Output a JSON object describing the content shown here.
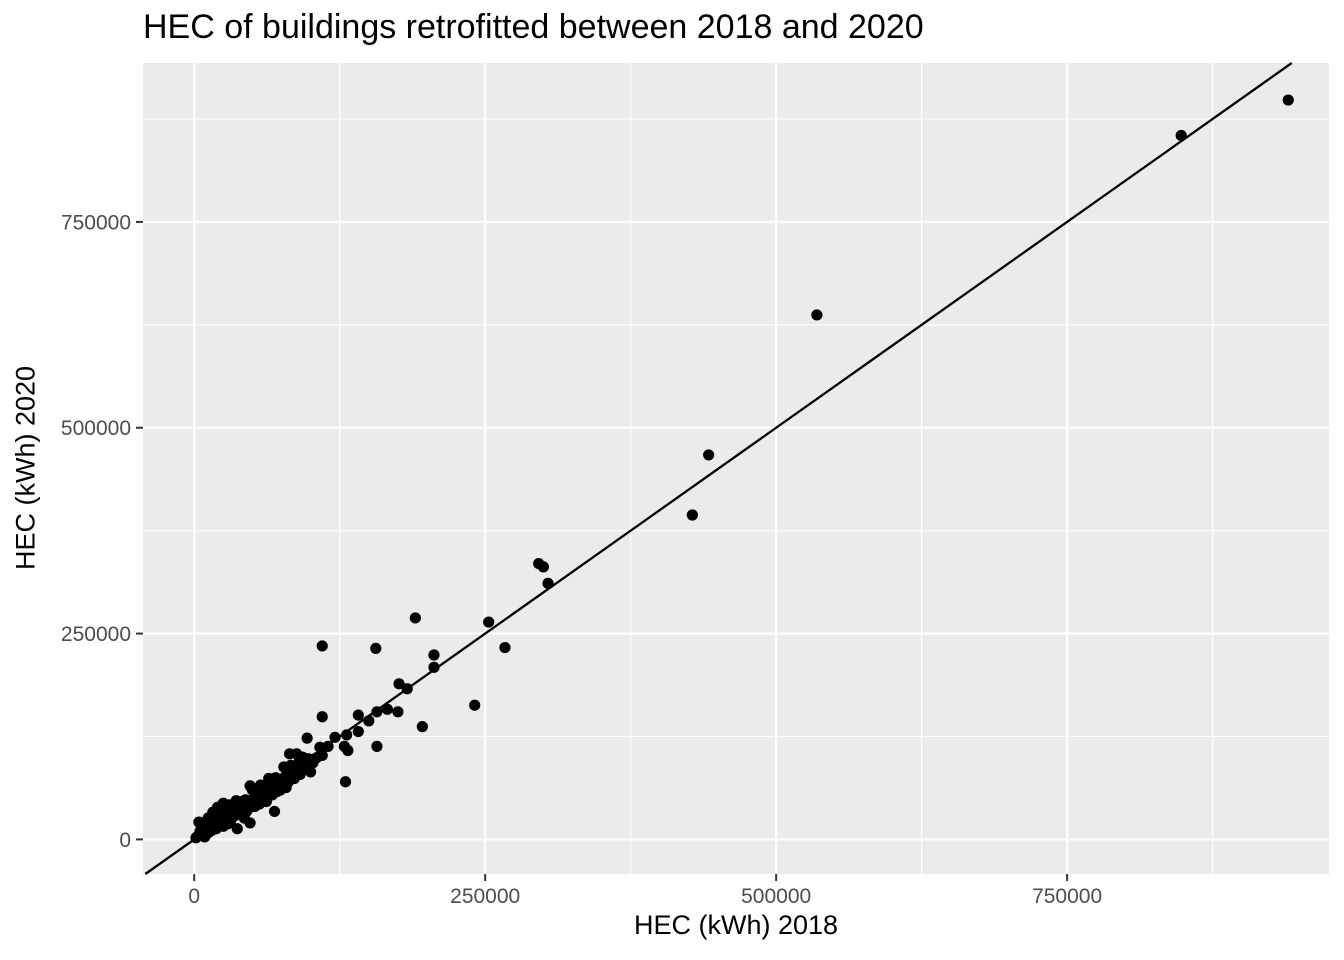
{
  "chart_data": {
    "type": "scatter",
    "title": "HEC of buildings retrofitted between 2018 and 2020",
    "xlabel": "HEC (kWh) 2018",
    "ylabel": "HEC (kWh) 2020",
    "xlim": [
      -44000,
      975000
    ],
    "ylim": [
      -42000,
      943000
    ],
    "x_ticks": [
      0,
      250000,
      500000,
      750000
    ],
    "x_tick_labels": [
      "0",
      "250000",
      "500000",
      "750000"
    ],
    "y_ticks": [
      0,
      250000,
      500000,
      750000
    ],
    "y_tick_labels": [
      "0",
      "250000",
      "500000",
      "750000"
    ],
    "grid": true,
    "reference_line": {
      "slope": 1,
      "intercept": 0
    },
    "colors": {
      "panel": "#EBEBEB",
      "grid": "#FFFFFF",
      "points": "#000000",
      "line": "#000000",
      "tick_text": "#4D4D4D"
    },
    "points": [
      [
        940000,
        898000
      ],
      [
        848000,
        855000
      ],
      [
        535000,
        637000
      ],
      [
        442000,
        467000
      ],
      [
        428000,
        394000
      ],
      [
        296000,
        335000
      ],
      [
        300000,
        331000
      ],
      [
        304000,
        311000
      ],
      [
        253000,
        264000
      ],
      [
        267000,
        233000
      ],
      [
        190000,
        269000
      ],
      [
        110000,
        235000
      ],
      [
        156000,
        232000
      ],
      [
        206000,
        224000
      ],
      [
        206000,
        209000
      ],
      [
        176000,
        189000
      ],
      [
        183000,
        183000
      ],
      [
        175000,
        155000
      ],
      [
        166000,
        158000
      ],
      [
        157000,
        155000
      ],
      [
        241000,
        163000
      ],
      [
        196000,
        137000
      ],
      [
        157000,
        113000
      ],
      [
        110000,
        149000
      ],
      [
        141000,
        151000
      ],
      [
        150000,
        144000
      ],
      [
        131000,
        127000
      ],
      [
        141000,
        131000
      ],
      [
        121000,
        124000
      ],
      [
        115000,
        113000
      ],
      [
        129000,
        113000
      ],
      [
        132000,
        108000
      ],
      [
        130000,
        70000
      ],
      [
        97000,
        123000
      ],
      [
        108000,
        112000
      ],
      [
        110000,
        102000
      ],
      [
        98000,
        98000
      ],
      [
        102000,
        93000
      ],
      [
        95000,
        89000
      ],
      [
        88000,
        104000
      ],
      [
        82000,
        104000
      ],
      [
        90000,
        94000
      ],
      [
        86000,
        87000
      ],
      [
        84000,
        82000
      ],
      [
        80000,
        78000
      ],
      [
        77000,
        88000
      ],
      [
        100000,
        82000
      ],
      [
        92000,
        83000
      ],
      [
        73000,
        72000
      ],
      [
        70000,
        75000
      ],
      [
        66000,
        68000
      ],
      [
        75000,
        66000
      ],
      [
        79000,
        63000
      ],
      [
        64000,
        74000
      ],
      [
        60000,
        63000
      ],
      [
        57000,
        66000
      ],
      [
        61000,
        57000
      ],
      [
        53000,
        55000
      ],
      [
        48000,
        65000
      ],
      [
        50000,
        48000
      ],
      [
        44000,
        48000
      ],
      [
        40000,
        46000
      ],
      [
        38000,
        42000
      ],
      [
        42000,
        37000
      ],
      [
        34000,
        38000
      ],
      [
        30000,
        34000
      ],
      [
        26000,
        29000
      ],
      [
        22000,
        25000
      ],
      [
        18000,
        20000
      ],
      [
        14000,
        17000
      ],
      [
        10000,
        12000
      ],
      [
        6000,
        8000
      ],
      [
        3000,
        4000
      ],
      [
        1500,
        2000
      ],
      [
        4000,
        21000
      ],
      [
        8000,
        14000
      ],
      [
        12000,
        26000
      ],
      [
        16000,
        33000
      ],
      [
        20000,
        39000
      ],
      [
        25000,
        44000
      ],
      [
        30000,
        42000
      ],
      [
        36000,
        47000
      ],
      [
        47000,
        38000
      ],
      [
        58000,
        48000
      ],
      [
        63000,
        52000
      ],
      [
        71000,
        58000
      ],
      [
        69000,
        34000
      ],
      [
        48000,
        20000
      ],
      [
        37000,
        13000
      ],
      [
        25000,
        16000
      ],
      [
        28000,
        23000
      ],
      [
        33000,
        27000
      ],
      [
        39000,
        31000
      ],
      [
        45000,
        34000
      ],
      [
        52000,
        40000
      ],
      [
        56000,
        43000
      ],
      [
        62000,
        46000
      ],
      [
        67000,
        54000
      ],
      [
        74000,
        60000
      ],
      [
        81000,
        70000
      ],
      [
        86000,
        74000
      ],
      [
        91000,
        79000
      ],
      [
        96000,
        85000
      ],
      [
        102000,
        97000
      ],
      [
        12000,
        8000
      ],
      [
        15000,
        11000
      ],
      [
        19000,
        13000
      ],
      [
        23000,
        17000
      ],
      [
        8000,
        5000
      ],
      [
        5000,
        10000
      ],
      [
        17000,
        27000
      ],
      [
        22000,
        31000
      ],
      [
        27000,
        37000
      ],
      [
        31000,
        21000
      ],
      [
        35000,
        29000
      ],
      [
        41000,
        35000
      ],
      [
        46000,
        43000
      ],
      [
        54000,
        59000
      ],
      [
        59000,
        54000
      ],
      [
        65000,
        61000
      ],
      [
        72000,
        66000
      ],
      [
        78000,
        76000
      ],
      [
        83000,
        90000
      ],
      [
        93000,
        100000
      ],
      [
        105000,
        99000
      ],
      [
        9000,
        3000
      ],
      [
        11000,
        19000
      ],
      [
        13000,
        24000
      ],
      [
        20000,
        21000
      ],
      [
        24000,
        28000
      ],
      [
        29000,
        19000
      ],
      [
        32000,
        32000
      ],
      [
        43000,
        26000
      ],
      [
        50000,
        60000
      ],
      [
        55000,
        51000
      ]
    ]
  }
}
